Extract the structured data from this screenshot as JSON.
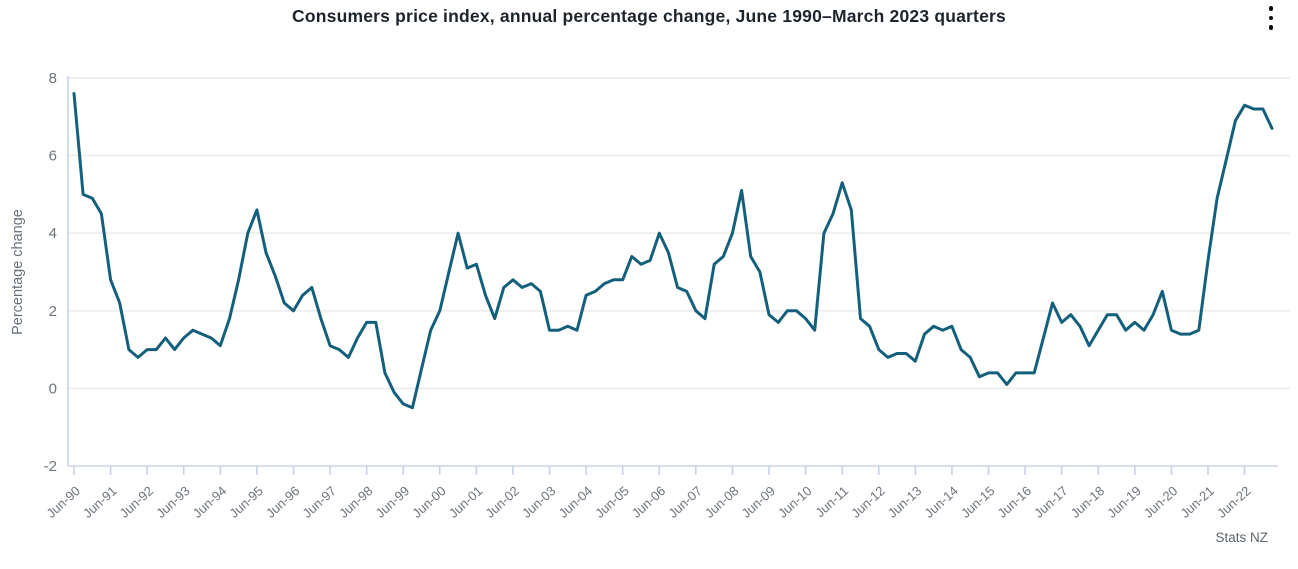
{
  "header": {
    "title": "Consumers price index, annual percentage change, June 1990–March 2023 quarters"
  },
  "menu": {
    "icon": "kebab-menu-icon"
  },
  "attribution": "Stats NZ",
  "colors": {
    "line": "#14607c",
    "gridline": "#e9eaed",
    "axis_line": "#ccd4ec",
    "tick": "#c9d1ea",
    "tick_label": "#6e747e",
    "title_text": "#1d242b",
    "attribution_text": "#5c646c"
  },
  "chart_data": {
    "type": "line",
    "title": "Consumers price index, annual percentage change, June 1990–March 2023 quarters",
    "xlabel": "",
    "ylabel": "Percentage change",
    "x_start": "Jun-1990",
    "x_end": "Mar-2023",
    "frequency": "quarterly",
    "ylim": [
      -2,
      8
    ],
    "y_ticks": [
      8,
      6,
      4,
      2,
      0,
      -2
    ],
    "gridline_values": [
      8,
      6,
      4,
      2,
      0
    ],
    "grid": "horizontal",
    "legend": "none",
    "x_tick_labels": [
      "Jun-90",
      "Jun-91",
      "Jun-92",
      "Jun-93",
      "Jun-94",
      "Jun-95",
      "Jun-96",
      "Jun-97",
      "Jun-98",
      "Jun-99",
      "Jun-00",
      "Jun-01",
      "Jun-02",
      "Jun-03",
      "Jun-04",
      "Jun-05",
      "Jun-06",
      "Jun-07",
      "Jun-08",
      "Jun-09",
      "Jun-10",
      "Jun-11",
      "Jun-12",
      "Jun-13",
      "Jun-14",
      "Jun-15",
      "Jun-16",
      "Jun-17",
      "Jun-18",
      "Jun-19",
      "Jun-20",
      "Jun-21",
      "Jun-22"
    ],
    "series": [
      {
        "name": "CPI annual percentage change",
        "values": [
          7.6,
          5.0,
          4.9,
          4.5,
          2.8,
          2.2,
          1.0,
          0.8,
          1.0,
          1.0,
          1.3,
          1.0,
          1.3,
          1.5,
          1.4,
          1.3,
          1.1,
          1.8,
          2.8,
          4.0,
          4.6,
          3.5,
          2.9,
          2.2,
          2.0,
          2.4,
          2.6,
          1.8,
          1.1,
          1.0,
          0.8,
          1.3,
          1.7,
          1.7,
          0.4,
          -0.1,
          -0.4,
          -0.5,
          0.5,
          1.5,
          2.0,
          3.0,
          4.0,
          3.1,
          3.2,
          2.4,
          1.8,
          2.6,
          2.8,
          2.6,
          2.7,
          2.5,
          1.5,
          1.5,
          1.6,
          1.5,
          2.4,
          2.5,
          2.7,
          2.8,
          2.8,
          3.4,
          3.2,
          3.3,
          4.0,
          3.5,
          2.6,
          2.5,
          2.0,
          1.8,
          3.2,
          3.4,
          4.0,
          5.1,
          3.4,
          3.0,
          1.9,
          1.7,
          2.0,
          2.0,
          1.8,
          1.5,
          4.0,
          4.5,
          5.3,
          4.6,
          1.8,
          1.6,
          1.0,
          0.8,
          0.9,
          0.9,
          0.7,
          1.4,
          1.6,
          1.5,
          1.6,
          1.0,
          0.8,
          0.3,
          0.4,
          0.4,
          0.1,
          0.4,
          0.4,
          0.4,
          1.3,
          2.2,
          1.7,
          1.9,
          1.6,
          1.1,
          1.5,
          1.9,
          1.9,
          1.5,
          1.7,
          1.5,
          1.9,
          2.5,
          1.5,
          1.4,
          1.4,
          1.5,
          3.3,
          4.9,
          5.9,
          6.9,
          7.3,
          7.2,
          7.2,
          6.7
        ]
      }
    ]
  }
}
